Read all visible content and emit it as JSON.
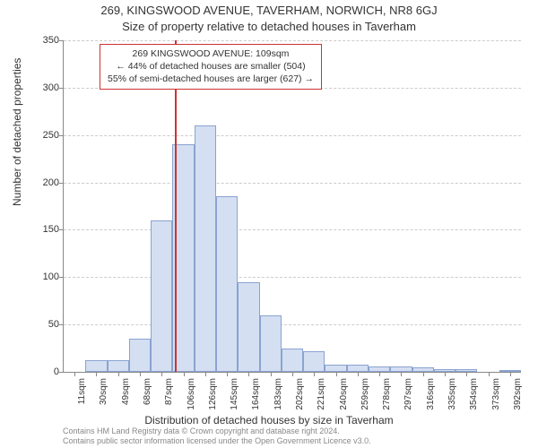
{
  "title_main": "269, KINGSWOOD AVENUE, TAVERHAM, NORWICH, NR8 6GJ",
  "title_sub": "Size of property relative to detached houses in Taverham",
  "ylabel": "Number of detached properties",
  "xlabel": "Distribution of detached houses by size in Taverham",
  "footer_line1": "Contains HM Land Registry data © Crown copyright and database right 2024.",
  "footer_line2": "Contains public sector information licensed under the Open Government Licence v3.0.",
  "annotation": {
    "line1": "269 KINGSWOOD AVENUE: 109sqm",
    "line2": "← 44% of detached houses are smaller (504)",
    "line3": "55% of semi-detached houses are larger (627) →"
  },
  "chart": {
    "type": "histogram",
    "ylim": [
      0,
      350
    ],
    "ytick_step": 50,
    "yticks": [
      0,
      50,
      100,
      150,
      200,
      250,
      300,
      350
    ],
    "xtick_labels": [
      "11sqm",
      "30sqm",
      "49sqm",
      "68sqm",
      "87sqm",
      "106sqm",
      "126sqm",
      "145sqm",
      "164sqm",
      "183sqm",
      "202sqm",
      "221sqm",
      "240sqm",
      "259sqm",
      "278sqm",
      "297sqm",
      "316sqm",
      "335sqm",
      "354sqm",
      "373sqm",
      "392sqm"
    ],
    "bar_values": [
      0,
      12,
      12,
      35,
      160,
      240,
      260,
      185,
      95,
      60,
      25,
      22,
      8,
      8,
      6,
      6,
      5,
      3,
      3,
      0,
      2
    ],
    "bar_color": "#d4dff2",
    "bar_border_color": "#8aa3d0",
    "grid_color": "#cccccc",
    "axis_color": "#888888",
    "background_color": "#ffffff",
    "marker_x_bin": 5.15,
    "marker_color": "#cc3333",
    "annotation_border_color": "#cc3333",
    "title_fontsize": 13,
    "label_fontsize": 12,
    "tick_fontsize": 10,
    "annotation_fontsize": 10.5
  }
}
